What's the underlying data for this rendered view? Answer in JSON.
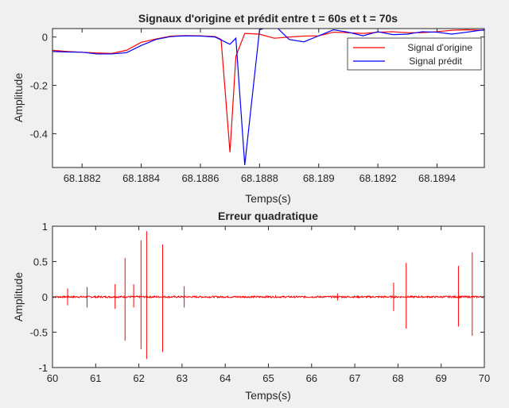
{
  "figure": {
    "background": "#f0f0f0"
  },
  "chart_data": [
    {
      "type": "line",
      "title": "Signaux d'origine et prédit entre t = 60s et t = 70s",
      "xlabel": "Temps(s)",
      "ylabel": "Amplitude",
      "xlim": [
        68.1881,
        68.18956
      ],
      "ylim": [
        -0.54,
        0.035
      ],
      "xticks": [
        68.1882,
        68.1884,
        68.1886,
        68.1888,
        68.189,
        68.1892,
        68.1894
      ],
      "xtick_labels": [
        "68.1882",
        "68.1884",
        "68.1886",
        "68.1888",
        "68.189",
        "68.1892",
        "68.1894"
      ],
      "yticks": [
        0,
        -0.2,
        -0.4
      ],
      "ytick_labels": [
        "0",
        "-0.2",
        "-0.4"
      ],
      "grid": false,
      "legend": {
        "placement": "top-right"
      },
      "series": [
        {
          "name": "Signal d'origine",
          "color": "#ff0000",
          "x": [
            68.1881,
            68.18815,
            68.1882,
            68.18825,
            68.1883,
            68.18835,
            68.1884,
            68.18845,
            68.1885,
            68.18855,
            68.1886,
            68.18865,
            68.18867,
            68.1887,
            68.18872,
            68.18875,
            68.1888,
            68.18885,
            68.1889,
            68.18895,
            68.189,
            68.18905,
            68.1891,
            68.18915,
            68.1892,
            68.18925,
            68.1893,
            68.18935,
            68.1894,
            68.18945,
            68.1895,
            68.18956
          ],
          "y": [
            -0.055,
            -0.06,
            -0.063,
            -0.066,
            -0.068,
            -0.055,
            -0.022,
            -0.008,
            0.004,
            0.006,
            0.005,
            0.002,
            -0.01,
            -0.477,
            -0.08,
            0.015,
            0.012,
            -0.005,
            0.0,
            0.004,
            0.005,
            0.02,
            0.018,
            0.015,
            0.02,
            0.022,
            0.018,
            0.018,
            0.022,
            0.028,
            0.03,
            0.028
          ]
        },
        {
          "name": "Signal prédit",
          "color": "#0000ff",
          "x": [
            68.1881,
            68.18815,
            68.1882,
            68.18825,
            68.1883,
            68.18835,
            68.1884,
            68.18845,
            68.1885,
            68.18855,
            68.1886,
            68.18865,
            68.1887,
            68.18872,
            68.18875,
            68.1888,
            68.18885,
            68.1889,
            68.18895,
            68.189,
            68.18905,
            68.1891,
            68.18915,
            68.1892,
            68.18925,
            68.1893,
            68.18935,
            68.1894,
            68.18945,
            68.1895,
            68.18956
          ],
          "y": [
            -0.06,
            -0.062,
            -0.063,
            -0.07,
            -0.07,
            -0.065,
            -0.035,
            -0.01,
            0.002,
            0.005,
            0.004,
            0.0,
            -0.03,
            -0.005,
            -0.53,
            0.03,
            0.05,
            -0.01,
            -0.02,
            0.005,
            0.03,
            0.02,
            0.005,
            0.022,
            0.01,
            0.012,
            0.022,
            0.02,
            0.012,
            0.02,
            0.03
          ]
        }
      ]
    },
    {
      "type": "line",
      "title": "Erreur quadratique",
      "xlabel": "Temps(s)",
      "ylabel": "Amplitude",
      "xlim": [
        60,
        70
      ],
      "ylim": [
        -1,
        1
      ],
      "xticks": [
        60,
        61,
        62,
        63,
        64,
        65,
        66,
        67,
        68,
        69,
        70
      ],
      "xtick_labels": [
        "60",
        "61",
        "62",
        "63",
        "64",
        "65",
        "66",
        "67",
        "68",
        "69",
        "70"
      ],
      "yticks": [
        1,
        0.5,
        0,
        -0.5,
        -1
      ],
      "ytick_labels": [
        "1",
        "0.5",
        "0",
        "-0.5",
        "-1"
      ],
      "grid": false,
      "series": [
        {
          "color": "#ff0000",
          "baseline_noise": 0.012,
          "spikes": [
            {
              "x": 60.35,
              "ymax": 0.12,
              "ymin": -0.12
            },
            {
              "x": 60.8,
              "ymax": 0.14,
              "ymin": -0.15
            },
            {
              "x": 61.45,
              "ymax": 0.18,
              "ymin": -0.17
            },
            {
              "x": 61.68,
              "ymax": 0.55,
              "ymin": -0.62
            },
            {
              "x": 61.88,
              "ymax": 0.18,
              "ymin": -0.15
            },
            {
              "x": 62.05,
              "ymax": 0.8,
              "ymin": -0.74
            },
            {
              "x": 62.18,
              "ymax": 0.93,
              "ymin": -0.88
            },
            {
              "x": 62.55,
              "ymax": 0.74,
              "ymin": -0.78
            },
            {
              "x": 63.05,
              "ymax": 0.15,
              "ymin": -0.15
            },
            {
              "x": 66.6,
              "ymax": 0.05,
              "ymin": -0.05
            },
            {
              "x": 67.9,
              "ymax": 0.2,
              "ymin": -0.2
            },
            {
              "x": 68.19,
              "ymax": 0.48,
              "ymin": -0.45
            },
            {
              "x": 69.4,
              "ymax": 0.44,
              "ymin": -0.42
            },
            {
              "x": 69.72,
              "ymax": 0.63,
              "ymin": -0.55
            }
          ]
        }
      ]
    }
  ]
}
